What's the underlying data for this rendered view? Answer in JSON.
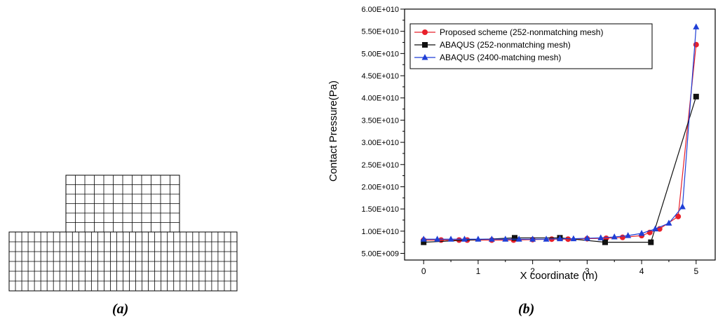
{
  "captions": {
    "a": "(a)",
    "b": "(b)"
  },
  "mesh": {
    "top_block": {
      "cols": 12,
      "rows": 6
    },
    "bottom_block": {
      "cols": 36,
      "rows": 6
    }
  },
  "chart_data": {
    "type": "line",
    "xlabel": "X coordinate (m)",
    "ylabel": "Contact Pressure(Pa)",
    "xlim": [
      -0.35,
      5.35
    ],
    "ylim": [
      3500000000.0,
      60000000000.0
    ],
    "xticks": [
      0,
      1,
      2,
      3,
      4,
      5
    ],
    "yticks": [
      5000000000.0,
      10000000000.0,
      15000000000.0,
      20000000000.0,
      25000000000.0,
      30000000000.0,
      35000000000.0,
      40000000000.0,
      45000000000.0,
      50000000000.0,
      55000000000.0,
      60000000000.0
    ],
    "ytick_labels": [
      "5.00E+009",
      "1.00E+010",
      "1.50E+010",
      "2.00E+010",
      "2.50E+010",
      "3.00E+010",
      "3.50E+010",
      "4.00E+010",
      "4.50E+010",
      "5.00E+010",
      "5.50E+010",
      "6.00E+010"
    ],
    "legend_position": "top-left",
    "series": [
      {
        "name": "Proposed scheme (252-nonmatching mesh)",
        "color": "#e8202a",
        "marker": "circle",
        "x": [
          0,
          0.32,
          0.65,
          0.8,
          1.25,
          1.65,
          2.0,
          2.35,
          2.65,
          3.0,
          3.35,
          3.65,
          4.0,
          4.15,
          4.33,
          4.67,
          5.0
        ],
        "y": [
          8000000000.0,
          8000000000.0,
          8000000000.0,
          8000000000.0,
          8000000000.0,
          8000000000.0,
          8100000000.0,
          8200000000.0,
          8200000000.0,
          8300000000.0,
          8400000000.0,
          8600000000.0,
          9000000000.0,
          9700000000.0,
          10500000000.0,
          13300000000.0,
          52000000000.0
        ]
      },
      {
        "name": "ABAQUS (252-nonmatching mesh)",
        "color": "#111111",
        "marker": "square",
        "x": [
          0,
          1.67,
          2.5,
          3.33,
          4.17,
          5.0
        ],
        "y": [
          7500000000.0,
          8500000000.0,
          8500000000.0,
          7500000000.0,
          7500000000.0,
          40300000000.0
        ]
      },
      {
        "name": "ABAQUS (2400-matching mesh)",
        "color": "#1f3fd6",
        "marker": "triangle",
        "x": [
          0,
          0.25,
          0.5,
          0.75,
          1.0,
          1.25,
          1.5,
          1.75,
          2.0,
          2.25,
          2.5,
          2.75,
          3.0,
          3.25,
          3.5,
          3.75,
          4.0,
          4.25,
          4.5,
          4.75,
          5.0
        ],
        "y": [
          8200000000.0,
          8200000000.0,
          8200000000.0,
          8200000000.0,
          8200000000.0,
          8200000000.0,
          8200000000.0,
          8200000000.0,
          8200000000.0,
          8200000000.0,
          8300000000.0,
          8300000000.0,
          8400000000.0,
          8500000000.0,
          8700000000.0,
          9000000000.0,
          9500000000.0,
          10500000000.0,
          11800000000.0,
          15500000000.0,
          56000000000.0
        ]
      }
    ]
  }
}
